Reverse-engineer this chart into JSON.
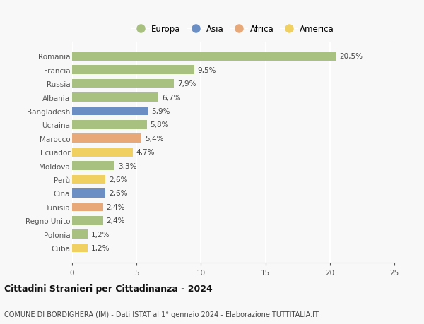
{
  "categories": [
    "Romania",
    "Francia",
    "Russia",
    "Albania",
    "Bangladesh",
    "Ucraina",
    "Marocco",
    "Ecuador",
    "Moldova",
    "Perù",
    "Cina",
    "Tunisia",
    "Regno Unito",
    "Polonia",
    "Cuba"
  ],
  "values": [
    20.5,
    9.5,
    7.9,
    6.7,
    5.9,
    5.8,
    5.4,
    4.7,
    3.3,
    2.6,
    2.6,
    2.4,
    2.4,
    1.2,
    1.2
  ],
  "labels": [
    "20,5%",
    "9,5%",
    "7,9%",
    "6,7%",
    "5,9%",
    "5,8%",
    "5,4%",
    "4,7%",
    "3,3%",
    "2,6%",
    "2,6%",
    "2,4%",
    "2,4%",
    "1,2%",
    "1,2%"
  ],
  "continent": [
    "Europa",
    "Europa",
    "Europa",
    "Europa",
    "Asia",
    "Europa",
    "Africa",
    "America",
    "Europa",
    "America",
    "Asia",
    "Africa",
    "Europa",
    "Europa",
    "America"
  ],
  "colors": {
    "Europa": "#a8c080",
    "Asia": "#6b8ec4",
    "Africa": "#e8a878",
    "America": "#f0d060"
  },
  "xlim": [
    0,
    25
  ],
  "xticks": [
    0,
    5,
    10,
    15,
    20,
    25
  ],
  "title": "Cittadini Stranieri per Cittadinanza - 2024",
  "subtitle": "COMUNE DI BORDIGHERA (IM) - Dati ISTAT al 1° gennaio 2024 - Elaborazione TUTTITALIA.IT",
  "background_color": "#f8f8f8",
  "bar_height": 0.65,
  "grid_color": "#ffffff",
  "label_fontsize": 7.5,
  "tick_fontsize": 7.5,
  "legend_labels": [
    "Europa",
    "Asia",
    "Africa",
    "America"
  ]
}
